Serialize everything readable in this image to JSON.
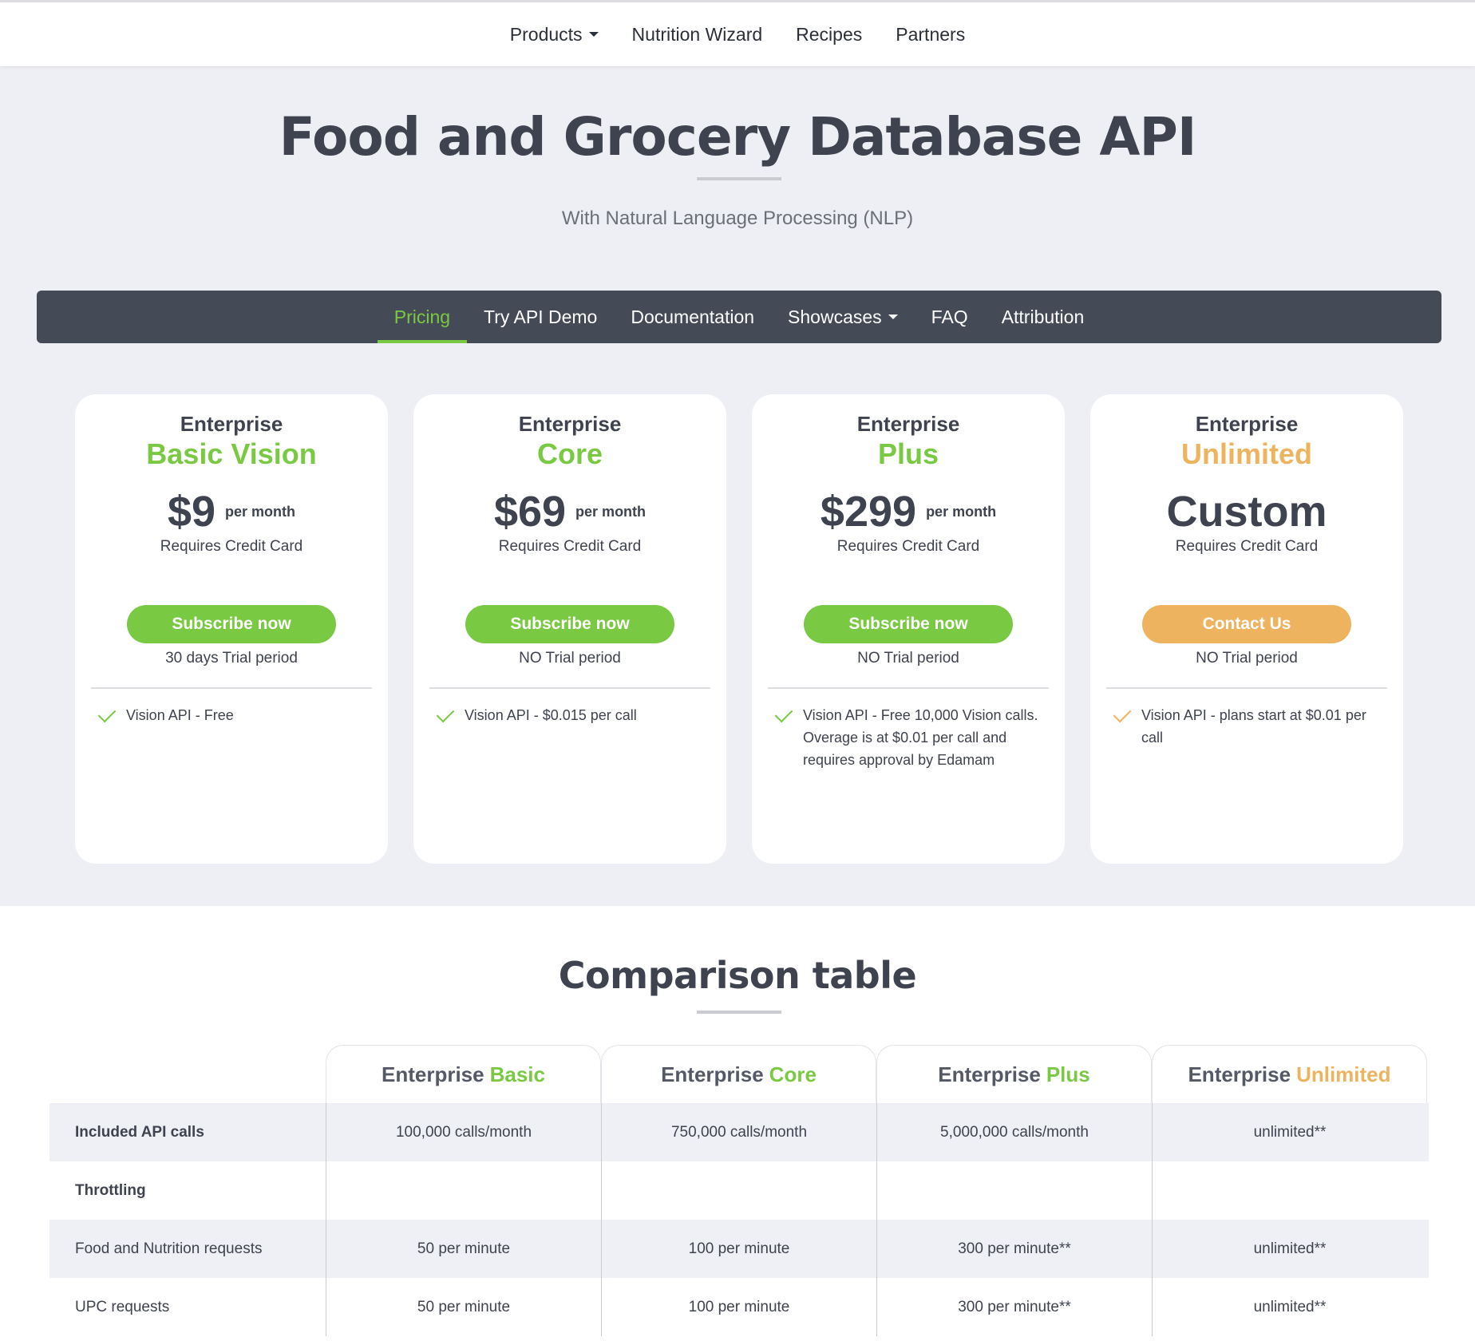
{
  "topnav": {
    "items": [
      {
        "label": "Products",
        "dropdown": true
      },
      {
        "label": "Nutrition Wizard"
      },
      {
        "label": "Recipes"
      },
      {
        "label": "Partners"
      }
    ]
  },
  "hero": {
    "title": "Food and Grocery Database API",
    "subtitle": "With Natural Language Processing (NLP)"
  },
  "subnav": {
    "tabs": [
      {
        "label": "Pricing",
        "active": true
      },
      {
        "label": "Try API Demo"
      },
      {
        "label": "Documentation"
      },
      {
        "label": "Showcases",
        "dropdown": true
      },
      {
        "label": "FAQ"
      },
      {
        "label": "Attribution"
      }
    ]
  },
  "cards": [
    {
      "ent": "Enterprise",
      "plan": "Basic Vision",
      "price": "$9",
      "per": "per month",
      "req": "Requires Credit Card",
      "button": "Subscribe now",
      "trial": "30 days Trial period",
      "feature": "Vision API - Free"
    },
    {
      "ent": "Enterprise",
      "plan": "Core",
      "price": "$69",
      "per": "per month",
      "req": "Requires Credit Card",
      "button": "Subscribe now",
      "trial": "NO Trial period",
      "feature": "Vision API - $0.015 per call"
    },
    {
      "ent": "Enterprise",
      "plan": "Plus",
      "price": "$299",
      "per": "per month",
      "req": "Requires Credit Card",
      "button": "Subscribe now",
      "trial": "NO Trial period",
      "feature": "Vision API - Free 10,000 Vision calls. Overage is at $0.01 per call and requires approval by Edamam"
    },
    {
      "ent": "Enterprise",
      "plan": "Unlimited",
      "price": "Custom",
      "per": "",
      "req": "Requires Credit Card",
      "button": "Contact Us",
      "trial": "NO Trial period",
      "feature": "Vision API - plans start at $0.01 per call"
    }
  ],
  "comparison": {
    "title": "Comparison table",
    "columns": [
      {
        "prefix": "Enterprise",
        "accent": "Basic"
      },
      {
        "prefix": "Enterprise",
        "accent": "Core"
      },
      {
        "prefix": "Enterprise",
        "accent": "Plus"
      },
      {
        "prefix": "Enterprise",
        "accent": "Unlimited"
      }
    ],
    "rows": [
      {
        "label": "Included API calls",
        "cells": [
          "100,000 calls/month",
          "750,000 calls/month",
          "5,000,000 calls/month",
          "unlimited**"
        ]
      },
      {
        "label": "Throttling",
        "cells": [
          "",
          "",
          "",
          ""
        ]
      },
      {
        "label": "Food and Nutrition requests",
        "cells": [
          "50 per minute",
          "100 per minute",
          "300 per minute**",
          "unlimited**"
        ]
      },
      {
        "label": "UPC requests",
        "cells": [
          "50 per minute",
          "100 per minute",
          "300 per minute**",
          "unlimited**"
        ]
      }
    ]
  },
  "colors": {
    "green": "#7ac943",
    "orange": "#eeb35e",
    "dark": "#454a57"
  }
}
